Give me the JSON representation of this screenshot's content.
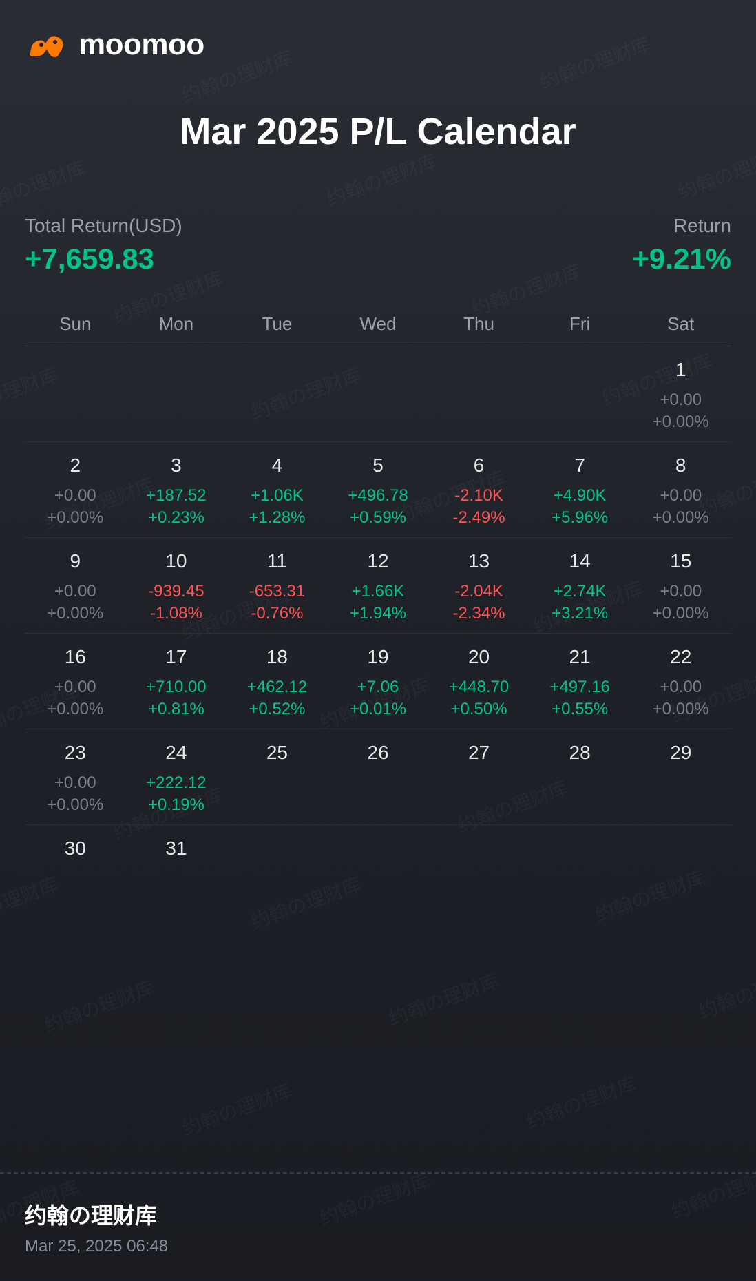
{
  "logo_text": "moomoo",
  "title": "Mar 2025 P/L Calendar",
  "summary": {
    "total_return_label": "Total Return(USD)",
    "total_return_value": "+7,659.83",
    "return_label": "Return",
    "return_percent": "+9.21%"
  },
  "colors": {
    "positive": "#00c48c",
    "negative": "#ff5252",
    "neutral": "#787d87",
    "text_primary": "#ffffff",
    "text_secondary": "#9ca0a8",
    "bg_top": "#2a2d35",
    "bg_bottom": "#1a1c22",
    "border": "#3a3d45",
    "logo_orange": "#ff7a00"
  },
  "weekdays": [
    "Sun",
    "Mon",
    "Tue",
    "Wed",
    "Thu",
    "Fri",
    "Sat"
  ],
  "calendar": {
    "weeks": [
      [
        {
          "empty": true
        },
        {
          "empty": true
        },
        {
          "empty": true
        },
        {
          "empty": true
        },
        {
          "empty": true
        },
        {
          "empty": true
        },
        {
          "day": "1",
          "amount": "+0.00",
          "percent": "+0.00%",
          "tone": "neutral"
        }
      ],
      [
        {
          "day": "2",
          "amount": "+0.00",
          "percent": "+0.00%",
          "tone": "neutral"
        },
        {
          "day": "3",
          "amount": "+187.52",
          "percent": "+0.23%",
          "tone": "positive"
        },
        {
          "day": "4",
          "amount": "+1.06K",
          "percent": "+1.28%",
          "tone": "positive"
        },
        {
          "day": "5",
          "amount": "+496.78",
          "percent": "+0.59%",
          "tone": "positive"
        },
        {
          "day": "6",
          "amount": "-2.10K",
          "percent": "-2.49%",
          "tone": "negative"
        },
        {
          "day": "7",
          "amount": "+4.90K",
          "percent": "+5.96%",
          "tone": "positive"
        },
        {
          "day": "8",
          "amount": "+0.00",
          "percent": "+0.00%",
          "tone": "neutral"
        }
      ],
      [
        {
          "day": "9",
          "amount": "+0.00",
          "percent": "+0.00%",
          "tone": "neutral"
        },
        {
          "day": "10",
          "amount": "-939.45",
          "percent": "-1.08%",
          "tone": "negative"
        },
        {
          "day": "11",
          "amount": "-653.31",
          "percent": "-0.76%",
          "tone": "negative"
        },
        {
          "day": "12",
          "amount": "+1.66K",
          "percent": "+1.94%",
          "tone": "positive"
        },
        {
          "day": "13",
          "amount": "-2.04K",
          "percent": "-2.34%",
          "tone": "negative"
        },
        {
          "day": "14",
          "amount": "+2.74K",
          "percent": "+3.21%",
          "tone": "positive"
        },
        {
          "day": "15",
          "amount": "+0.00",
          "percent": "+0.00%",
          "tone": "neutral"
        }
      ],
      [
        {
          "day": "16",
          "amount": "+0.00",
          "percent": "+0.00%",
          "tone": "neutral"
        },
        {
          "day": "17",
          "amount": "+710.00",
          "percent": "+0.81%",
          "tone": "positive"
        },
        {
          "day": "18",
          "amount": "+462.12",
          "percent": "+0.52%",
          "tone": "positive"
        },
        {
          "day": "19",
          "amount": "+7.06",
          "percent": "+0.01%",
          "tone": "positive"
        },
        {
          "day": "20",
          "amount": "+448.70",
          "percent": "+0.50%",
          "tone": "positive"
        },
        {
          "day": "21",
          "amount": "+497.16",
          "percent": "+0.55%",
          "tone": "positive"
        },
        {
          "day": "22",
          "amount": "+0.00",
          "percent": "+0.00%",
          "tone": "neutral"
        }
      ],
      [
        {
          "day": "23",
          "amount": "+0.00",
          "percent": "+0.00%",
          "tone": "neutral"
        },
        {
          "day": "24",
          "amount": "+222.12",
          "percent": "+0.19%",
          "tone": "positive"
        },
        {
          "day": "25",
          "empty_values": true
        },
        {
          "day": "26",
          "empty_values": true
        },
        {
          "day": "27",
          "empty_values": true
        },
        {
          "day": "28",
          "empty_values": true
        },
        {
          "day": "29",
          "empty_values": true
        }
      ],
      [
        {
          "day": "30",
          "empty_values": true
        },
        {
          "day": "31",
          "empty_values": true
        },
        {
          "empty": true
        },
        {
          "empty": true
        },
        {
          "empty": true
        },
        {
          "empty": true
        },
        {
          "empty": true
        }
      ]
    ]
  },
  "footer": {
    "name": "约翰の理财库",
    "date": "Mar 25, 2025 06:48"
  },
  "watermark_text": "约翰の理财库"
}
